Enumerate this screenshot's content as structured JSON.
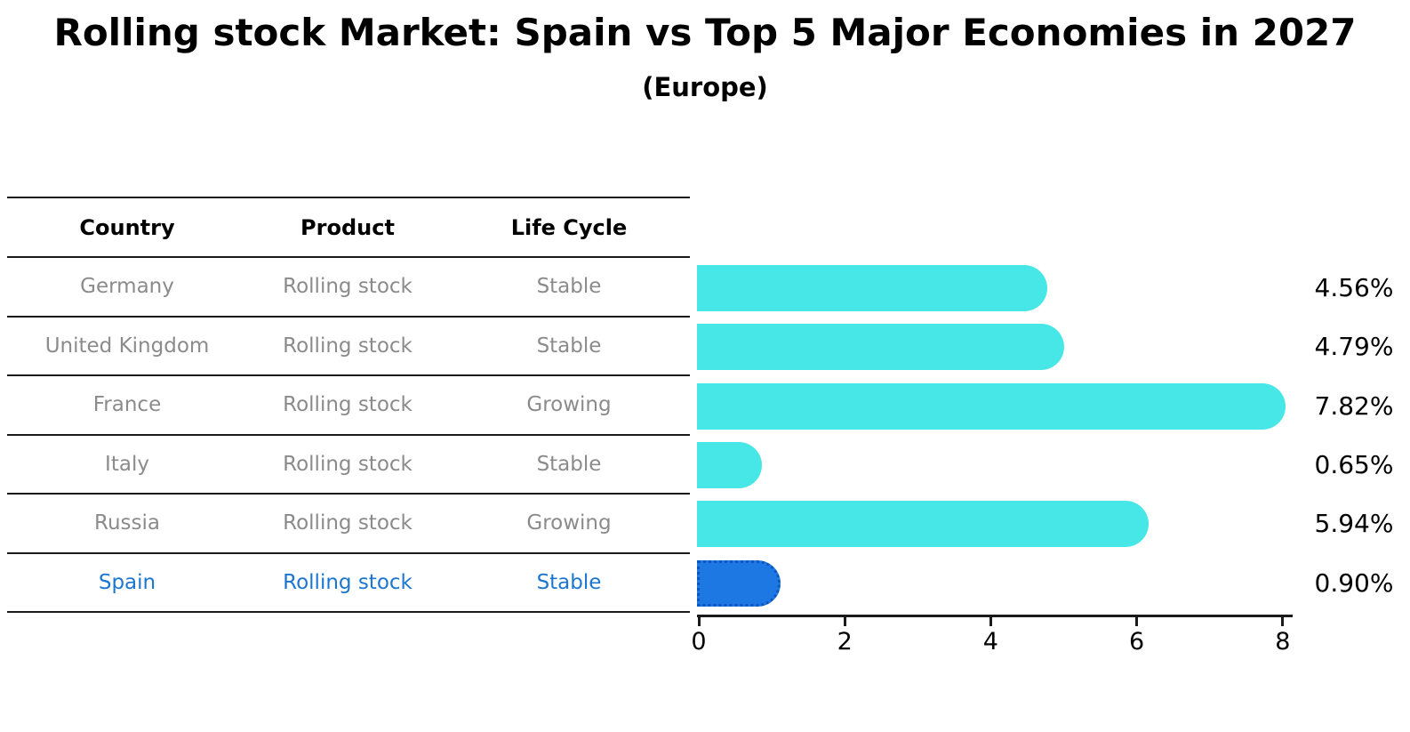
{
  "title": "Rolling stock Market: Spain vs Top 5 Major Economies in 2027",
  "subtitle": "(Europe)",
  "table": {
    "headers": [
      "Country",
      "Product",
      "Life Cycle"
    ],
    "rows": [
      {
        "country": "Germany",
        "product": "Rolling stock",
        "life_cycle": "Stable",
        "highlighted": false
      },
      {
        "country": "United Kingdom",
        "product": "Rolling stock",
        "life_cycle": "Stable",
        "highlighted": false
      },
      {
        "country": "France",
        "product": "Rolling stock",
        "life_cycle": "Growing",
        "highlighted": false
      },
      {
        "country": "Italy",
        "product": "Rolling stock",
        "life_cycle": "Stable",
        "highlighted": false
      },
      {
        "country": "Russia",
        "product": "Rolling stock",
        "life_cycle": "Growing",
        "highlighted": false
      },
      {
        "country": "Spain",
        "product": "Rolling stock",
        "life_cycle": "Stable",
        "highlighted": true
      }
    ]
  },
  "chart_data": {
    "type": "bar",
    "orientation": "horizontal",
    "title": "Rolling stock Market: Spain vs Top 5 Major Economies in 2027",
    "subtitle": "(Europe)",
    "categories": [
      "Germany",
      "United Kingdom",
      "France",
      "Italy",
      "Russia",
      "Spain"
    ],
    "values": [
      4.56,
      4.79,
      7.82,
      0.65,
      5.94,
      0.9
    ],
    "value_labels": [
      "4.56%",
      "4.79%",
      "7.82%",
      "0.65%",
      "5.94%",
      "0.90%"
    ],
    "xlabel": "",
    "ylabel": "",
    "xticks": [
      0,
      2,
      4,
      6,
      8
    ],
    "xlim": [
      0,
      8.2
    ],
    "grid": false,
    "legend": false,
    "highlight_index": 5,
    "bar_color": "#47e7e7",
    "highlight_bar_color": "#1e78e4",
    "highlight_border_color": "#0d55c0"
  },
  "colors": {
    "text_primary": "#000000",
    "table_body_text": "#8b8b8b",
    "highlight_text": "#1c75d0",
    "rule_line": "#1a1a1a"
  }
}
